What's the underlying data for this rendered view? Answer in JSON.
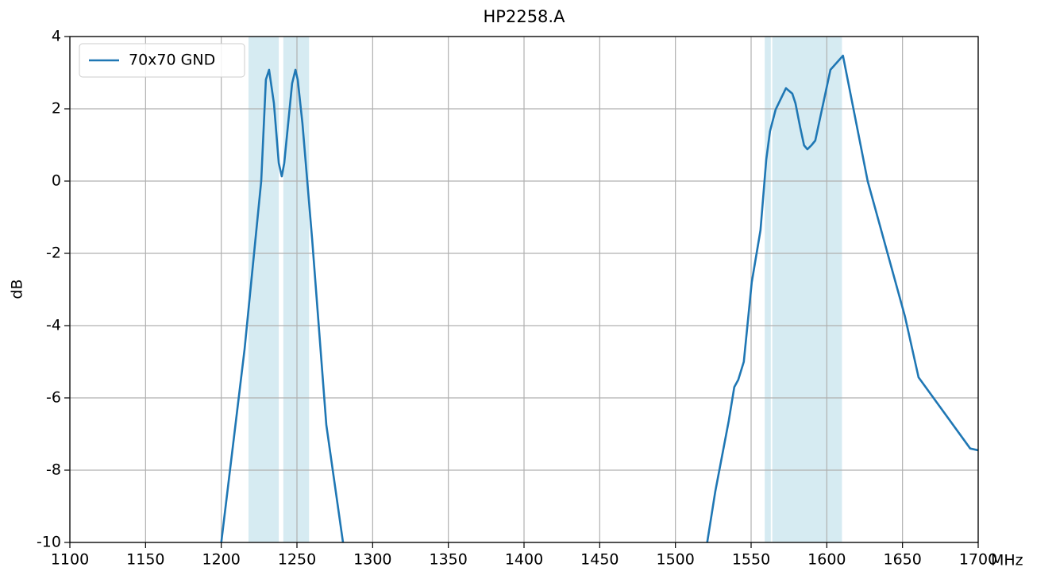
{
  "chart_data": {
    "type": "line",
    "title": "HP2258.A",
    "ylabel": "dB",
    "xlabel": "MHz",
    "x": [
      1200,
      1215.4,
      1226.4,
      1229.5,
      1231.6,
      1234.8,
      1238,
      1240,
      1241.6,
      1246.8,
      1249,
      1250.5,
      1253.6,
      1260,
      1269.4,
      1280.4,
      null,
      1521,
      1526.3,
      1535.2,
      1538.9,
      1541.5,
      1545.2,
      1550.4,
      1556.2,
      1560,
      1562.5,
      1566.2,
      1573,
      1577.2,
      1579.3,
      1582.4,
      1585,
      1587.2,
      1589.8,
      1592.4,
      1602.4,
      1610.7,
      1627,
      1651.6,
      1660.6,
      1694.7,
      1700
    ],
    "series": [
      {
        "name": "70x70 GND",
        "color": "#1f77b4",
        "values": [
          -10,
          -4.66,
          0,
          2.81,
          3.08,
          2.15,
          0.5,
          0.13,
          0.5,
          2.7,
          3.08,
          2.8,
          1.6,
          -1.6,
          -6.75,
          -10,
          null,
          -10,
          -8.6,
          -6.64,
          -5.7,
          -5.5,
          -5.0,
          -2.8,
          -1.36,
          0.6,
          1.38,
          1.98,
          2.57,
          2.42,
          2.15,
          1.49,
          0.99,
          0.88,
          0.99,
          1.12,
          3.08,
          3.47,
          0,
          -3.74,
          -5.43,
          -7.4,
          -7.45
        ]
      }
    ],
    "spans": [
      [
        1218,
        1238
      ],
      [
        1241,
        1258
      ],
      [
        1559,
        1563
      ],
      [
        1564,
        1610
      ]
    ],
    "span_color": "#add8e6",
    "xlim": [
      1100,
      1700
    ],
    "ylim": [
      -10,
      4
    ],
    "xticks": [
      1100,
      1150,
      1200,
      1250,
      1300,
      1350,
      1400,
      1450,
      1500,
      1550,
      1600,
      1650,
      1700
    ],
    "yticks": [
      -10,
      -8,
      -6,
      -4,
      -2,
      0,
      2,
      4
    ],
    "grid": true,
    "legend": "upper left"
  }
}
